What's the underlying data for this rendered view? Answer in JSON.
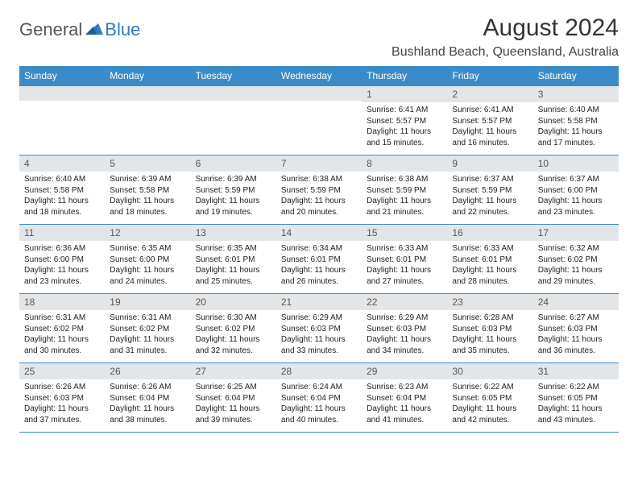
{
  "logo": {
    "general": "General",
    "blue": "Blue"
  },
  "title": "August 2024",
  "location": "Bushland Beach, Queensland, Australia",
  "colors": {
    "header_bg": "#3b8bc8",
    "header_text": "#ffffff",
    "row_border": "#3b8bc8",
    "daynum_bg": "#e3e6e8",
    "logo_blue": "#2f7bbf",
    "logo_gray": "#555555",
    "page_bg": "#ffffff"
  },
  "day_headers": [
    "Sunday",
    "Monday",
    "Tuesday",
    "Wednesday",
    "Thursday",
    "Friday",
    "Saturday"
  ],
  "weeks": [
    [
      {
        "n": "",
        "lines": [
          "",
          "",
          "",
          ""
        ]
      },
      {
        "n": "",
        "lines": [
          "",
          "",
          "",
          ""
        ]
      },
      {
        "n": "",
        "lines": [
          "",
          "",
          "",
          ""
        ]
      },
      {
        "n": "",
        "lines": [
          "",
          "",
          "",
          ""
        ]
      },
      {
        "n": "1",
        "lines": [
          "Sunrise: 6:41 AM",
          "Sunset: 5:57 PM",
          "Daylight: 11 hours",
          "and 15 minutes."
        ]
      },
      {
        "n": "2",
        "lines": [
          "Sunrise: 6:41 AM",
          "Sunset: 5:57 PM",
          "Daylight: 11 hours",
          "and 16 minutes."
        ]
      },
      {
        "n": "3",
        "lines": [
          "Sunrise: 6:40 AM",
          "Sunset: 5:58 PM",
          "Daylight: 11 hours",
          "and 17 minutes."
        ]
      }
    ],
    [
      {
        "n": "4",
        "lines": [
          "Sunrise: 6:40 AM",
          "Sunset: 5:58 PM",
          "Daylight: 11 hours",
          "and 18 minutes."
        ]
      },
      {
        "n": "5",
        "lines": [
          "Sunrise: 6:39 AM",
          "Sunset: 5:58 PM",
          "Daylight: 11 hours",
          "and 18 minutes."
        ]
      },
      {
        "n": "6",
        "lines": [
          "Sunrise: 6:39 AM",
          "Sunset: 5:59 PM",
          "Daylight: 11 hours",
          "and 19 minutes."
        ]
      },
      {
        "n": "7",
        "lines": [
          "Sunrise: 6:38 AM",
          "Sunset: 5:59 PM",
          "Daylight: 11 hours",
          "and 20 minutes."
        ]
      },
      {
        "n": "8",
        "lines": [
          "Sunrise: 6:38 AM",
          "Sunset: 5:59 PM",
          "Daylight: 11 hours",
          "and 21 minutes."
        ]
      },
      {
        "n": "9",
        "lines": [
          "Sunrise: 6:37 AM",
          "Sunset: 5:59 PM",
          "Daylight: 11 hours",
          "and 22 minutes."
        ]
      },
      {
        "n": "10",
        "lines": [
          "Sunrise: 6:37 AM",
          "Sunset: 6:00 PM",
          "Daylight: 11 hours",
          "and 23 minutes."
        ]
      }
    ],
    [
      {
        "n": "11",
        "lines": [
          "Sunrise: 6:36 AM",
          "Sunset: 6:00 PM",
          "Daylight: 11 hours",
          "and 23 minutes."
        ]
      },
      {
        "n": "12",
        "lines": [
          "Sunrise: 6:35 AM",
          "Sunset: 6:00 PM",
          "Daylight: 11 hours",
          "and 24 minutes."
        ]
      },
      {
        "n": "13",
        "lines": [
          "Sunrise: 6:35 AM",
          "Sunset: 6:01 PM",
          "Daylight: 11 hours",
          "and 25 minutes."
        ]
      },
      {
        "n": "14",
        "lines": [
          "Sunrise: 6:34 AM",
          "Sunset: 6:01 PM",
          "Daylight: 11 hours",
          "and 26 minutes."
        ]
      },
      {
        "n": "15",
        "lines": [
          "Sunrise: 6:33 AM",
          "Sunset: 6:01 PM",
          "Daylight: 11 hours",
          "and 27 minutes."
        ]
      },
      {
        "n": "16",
        "lines": [
          "Sunrise: 6:33 AM",
          "Sunset: 6:01 PM",
          "Daylight: 11 hours",
          "and 28 minutes."
        ]
      },
      {
        "n": "17",
        "lines": [
          "Sunrise: 6:32 AM",
          "Sunset: 6:02 PM",
          "Daylight: 11 hours",
          "and 29 minutes."
        ]
      }
    ],
    [
      {
        "n": "18",
        "lines": [
          "Sunrise: 6:31 AM",
          "Sunset: 6:02 PM",
          "Daylight: 11 hours",
          "and 30 minutes."
        ]
      },
      {
        "n": "19",
        "lines": [
          "Sunrise: 6:31 AM",
          "Sunset: 6:02 PM",
          "Daylight: 11 hours",
          "and 31 minutes."
        ]
      },
      {
        "n": "20",
        "lines": [
          "Sunrise: 6:30 AM",
          "Sunset: 6:02 PM",
          "Daylight: 11 hours",
          "and 32 minutes."
        ]
      },
      {
        "n": "21",
        "lines": [
          "Sunrise: 6:29 AM",
          "Sunset: 6:03 PM",
          "Daylight: 11 hours",
          "and 33 minutes."
        ]
      },
      {
        "n": "22",
        "lines": [
          "Sunrise: 6:29 AM",
          "Sunset: 6:03 PM",
          "Daylight: 11 hours",
          "and 34 minutes."
        ]
      },
      {
        "n": "23",
        "lines": [
          "Sunrise: 6:28 AM",
          "Sunset: 6:03 PM",
          "Daylight: 11 hours",
          "and 35 minutes."
        ]
      },
      {
        "n": "24",
        "lines": [
          "Sunrise: 6:27 AM",
          "Sunset: 6:03 PM",
          "Daylight: 11 hours",
          "and 36 minutes."
        ]
      }
    ],
    [
      {
        "n": "25",
        "lines": [
          "Sunrise: 6:26 AM",
          "Sunset: 6:03 PM",
          "Daylight: 11 hours",
          "and 37 minutes."
        ]
      },
      {
        "n": "26",
        "lines": [
          "Sunrise: 6:26 AM",
          "Sunset: 6:04 PM",
          "Daylight: 11 hours",
          "and 38 minutes."
        ]
      },
      {
        "n": "27",
        "lines": [
          "Sunrise: 6:25 AM",
          "Sunset: 6:04 PM",
          "Daylight: 11 hours",
          "and 39 minutes."
        ]
      },
      {
        "n": "28",
        "lines": [
          "Sunrise: 6:24 AM",
          "Sunset: 6:04 PM",
          "Daylight: 11 hours",
          "and 40 minutes."
        ]
      },
      {
        "n": "29",
        "lines": [
          "Sunrise: 6:23 AM",
          "Sunset: 6:04 PM",
          "Daylight: 11 hours",
          "and 41 minutes."
        ]
      },
      {
        "n": "30",
        "lines": [
          "Sunrise: 6:22 AM",
          "Sunset: 6:05 PM",
          "Daylight: 11 hours",
          "and 42 minutes."
        ]
      },
      {
        "n": "31",
        "lines": [
          "Sunrise: 6:22 AM",
          "Sunset: 6:05 PM",
          "Daylight: 11 hours",
          "and 43 minutes."
        ]
      }
    ]
  ]
}
